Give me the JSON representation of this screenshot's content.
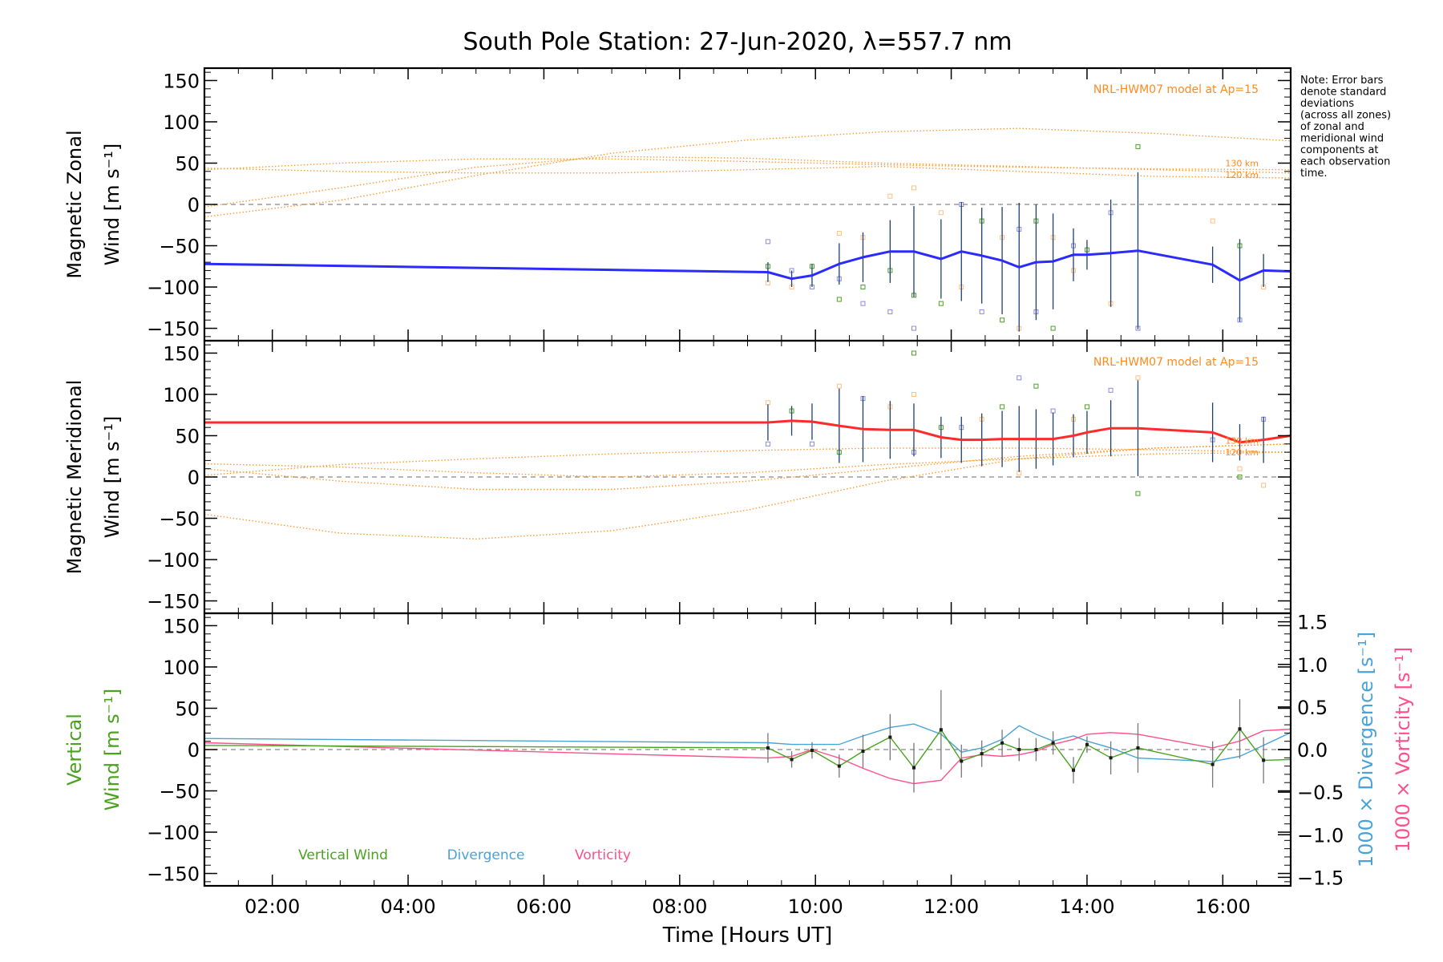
{
  "title": "South Pole Station: 27-Jun-2020, λ=557.7 nm",
  "note": [
    "Note: Error bars",
    "denote standard",
    "deviations",
    "(across all zones)",
    "of zonal and",
    "meridional wind",
    "components at",
    "each observation",
    "time."
  ],
  "colors": {
    "zonal": "#2b2bff",
    "meridional": "#ff2b2b",
    "vertical": "#4aa21f",
    "divergence": "#4aa3d6",
    "vorticity": "#ff4f8c",
    "model": "#ff9a2e",
    "model_text": "#ff8a1e",
    "errorbar": "#1f3f6f",
    "zero_line": "#888888",
    "scatter_blue": "#8a8ae8",
    "scatter_orange": "#ffc080",
    "scatter_green": "#4aa21f"
  },
  "chart_data": [
    {
      "id": "zonal",
      "type": "line",
      "ylabel": [
        "Magnetic Zonal",
        "Wind [m s⁻¹]"
      ],
      "xlim": [
        1.0,
        17.0
      ],
      "ylim": [
        -165,
        165
      ],
      "yticks": [
        150,
        100,
        50,
        0,
        -50,
        -100,
        -150
      ],
      "ytick_labels": [
        "150",
        "100",
        "50",
        "0",
        "−50",
        "−100",
        "−150"
      ],
      "model_label": "NRL-HWM07 model at Ap=15",
      "model_alt_labels": [
        "130 km",
        "120 km"
      ],
      "series": [
        {
          "name": "Zonal wind",
          "x": [
            1.0,
            9.3,
            9.65,
            9.95,
            10.35,
            10.7,
            11.1,
            11.45,
            11.85,
            12.15,
            12.45,
            12.75,
            13.0,
            13.25,
            13.5,
            13.8,
            14.0,
            14.35,
            14.75,
            15.85,
            16.25,
            16.6,
            17.0
          ],
          "y": [
            -72,
            -82,
            -90,
            -86,
            -72,
            -64,
            -57,
            -57,
            -66,
            -57,
            -62,
            -68,
            -76,
            -70,
            -69,
            -61,
            -61,
            -59,
            -56,
            -73,
            -92,
            -80,
            -81
          ],
          "err": [
            null,
            12,
            10,
            14,
            25,
            30,
            38,
            55,
            48,
            60,
            58,
            65,
            78,
            70,
            58,
            32,
            18,
            65,
            95,
            22,
            50,
            20,
            null
          ]
        }
      ],
      "model_series": [
        {
          "name": "model 1",
          "x": [
            1,
            3,
            5,
            7,
            9,
            11,
            13,
            15,
            17
          ],
          "y": [
            -15,
            5,
            35,
            62,
            78,
            88,
            92,
            86,
            77
          ]
        },
        {
          "name": "model 2",
          "x": [
            1,
            3,
            5,
            7,
            9,
            11,
            13,
            15,
            17
          ],
          "y": [
            -3,
            20,
            45,
            58,
            56,
            50,
            46,
            42,
            38
          ]
        },
        {
          "name": "model 3 (130 km)",
          "x": [
            1,
            3,
            5,
            7,
            9,
            11,
            13,
            15,
            17
          ],
          "y": [
            42,
            50,
            55,
            55,
            52,
            48,
            45,
            43,
            42
          ]
        },
        {
          "name": "model 4 (120 km)",
          "x": [
            1,
            3,
            5,
            7,
            9,
            11,
            13,
            15,
            17
          ],
          "y": [
            44,
            40,
            38,
            38,
            42,
            46,
            40,
            34,
            32
          ]
        }
      ],
      "scatter": {
        "x": [
          9.3,
          9.3,
          9.3,
          9.65,
          9.65,
          9.95,
          9.95,
          10.35,
          10.35,
          10.35,
          10.7,
          10.7,
          10.7,
          11.1,
          11.1,
          11.1,
          11.45,
          11.45,
          11.45,
          11.85,
          11.85,
          12.15,
          12.15,
          12.45,
          12.45,
          12.75,
          12.75,
          13.0,
          13.0,
          13.25,
          13.25,
          13.5,
          13.5,
          13.8,
          13.8,
          14.0,
          14.35,
          14.35,
          14.75,
          14.75,
          15.85,
          16.25,
          16.25,
          16.6
        ],
        "y": [
          -45,
          -95,
          -75,
          -80,
          -100,
          -75,
          -100,
          -35,
          -115,
          -90,
          -40,
          -100,
          -120,
          10,
          -80,
          -130,
          20,
          -110,
          -150,
          -10,
          -120,
          0,
          -100,
          -20,
          -130,
          -40,
          -140,
          -30,
          -150,
          -20,
          -130,
          -40,
          -150,
          -50,
          -80,
          -55,
          -10,
          -120,
          70,
          -150,
          -20,
          -50,
          -140,
          -100
        ]
      }
    },
    {
      "id": "meridional",
      "type": "line",
      "ylabel": [
        "Magnetic Meridional",
        "Wind [m s⁻¹]"
      ],
      "xlim": [
        1.0,
        17.0
      ],
      "ylim": [
        -165,
        165
      ],
      "yticks": [
        150,
        100,
        50,
        0,
        -50,
        -100,
        -150
      ],
      "ytick_labels": [
        "150",
        "100",
        "50",
        "0",
        "−50",
        "−100",
        "−150"
      ],
      "model_label": "NRL-HWM07 model at Ap=15",
      "model_alt_labels": [
        "130 km",
        "120 km"
      ],
      "series": [
        {
          "name": "Meridional wind",
          "x": [
            1.0,
            9.3,
            9.65,
            9.95,
            10.35,
            10.7,
            11.1,
            11.45,
            11.85,
            12.15,
            12.45,
            12.75,
            13.0,
            13.25,
            13.5,
            13.8,
            14.0,
            14.35,
            14.75,
            15.85,
            16.25,
            16.6,
            17.0
          ],
          "y": [
            66,
            66,
            68,
            67,
            62,
            58,
            57,
            57,
            48,
            45,
            45,
            46,
            46,
            46,
            46,
            50,
            54,
            59,
            59,
            54,
            42,
            45,
            50
          ],
          "err": [
            null,
            22,
            18,
            22,
            45,
            40,
            35,
            32,
            25,
            28,
            32,
            34,
            40,
            36,
            32,
            26,
            26,
            34,
            58,
            36,
            22,
            28,
            null
          ]
        }
      ],
      "model_series": [
        {
          "name": "model 1",
          "x": [
            1,
            3,
            5,
            7,
            9,
            11,
            13,
            15,
            17
          ],
          "y": [
            -45,
            -68,
            -75,
            -65,
            -40,
            -5,
            22,
            35,
            40
          ]
        },
        {
          "name": "model 2",
          "x": [
            1,
            3,
            5,
            7,
            9,
            11,
            13,
            15,
            17
          ],
          "y": [
            10,
            -5,
            -15,
            -15,
            -5,
            10,
            25,
            35,
            40
          ]
        },
        {
          "name": "model 3 (130 km)",
          "x": [
            1,
            3,
            5,
            7,
            9,
            11,
            13,
            15,
            17
          ],
          "y": [
            2,
            15,
            22,
            28,
            32,
            35,
            35,
            33,
            30
          ]
        },
        {
          "name": "model 4 (120 km)",
          "x": [
            1,
            3,
            5,
            7,
            9,
            11,
            13,
            15,
            17
          ],
          "y": [
            16,
            12,
            5,
            0,
            5,
            15,
            22,
            28,
            30
          ]
        }
      ],
      "scatter": {
        "x": [
          9.3,
          9.3,
          9.65,
          9.95,
          10.35,
          10.35,
          10.7,
          11.1,
          11.45,
          11.45,
          11.45,
          11.85,
          12.15,
          12.45,
          12.75,
          13.0,
          13.0,
          13.25,
          13.5,
          13.8,
          14.0,
          14.35,
          14.75,
          14.75,
          15.85,
          16.25,
          16.25,
          16.6,
          16.6
        ],
        "y": [
          40,
          90,
          80,
          40,
          110,
          30,
          95,
          85,
          150,
          30,
          100,
          60,
          60,
          70,
          85,
          120,
          5,
          110,
          80,
          70,
          85,
          105,
          120,
          -20,
          45,
          10,
          0,
          70,
          -10
        ]
      }
    },
    {
      "id": "vertical",
      "type": "line",
      "ylabel": [
        "Vertical",
        "Wind [m s⁻¹]"
      ],
      "xlabel": "Time [Hours UT]",
      "xlim": [
        1.0,
        17.0
      ],
      "ylim": [
        -165,
        165
      ],
      "yticks": [
        150,
        100,
        50,
        0,
        -50,
        -100,
        -150
      ],
      "ytick_labels": [
        "150",
        "100",
        "50",
        "0",
        "−50",
        "−100",
        "−150"
      ],
      "y2label": [
        "1000 × Divergence [s⁻¹]",
        "1000 × Vorticity [s⁻¹]"
      ],
      "y2lim": [
        -1.6,
        1.6
      ],
      "y2ticks": [
        1.5,
        1.0,
        0.5,
        0.0,
        -0.5,
        -1.0,
        -1.5
      ],
      "y2tick_labels": [
        "1.5",
        "1.0",
        "0.5",
        "0.0",
        "−0.5",
        "−1.0",
        "−1.5"
      ],
      "xticks": [
        2,
        4,
        6,
        8,
        10,
        12,
        14,
        16
      ],
      "xtick_labels": [
        "02:00",
        "04:00",
        "06:00",
        "08:00",
        "10:00",
        "12:00",
        "14:00",
        "16:00"
      ],
      "legend": [
        "Vertical Wind",
        "Divergence",
        "Vorticity"
      ],
      "series": [
        {
          "name": "Vertical Wind",
          "axis": "left",
          "x": [
            1.0,
            9.3,
            9.65,
            9.95,
            10.35,
            10.7,
            11.1,
            11.45,
            11.85,
            12.15,
            12.45,
            12.75,
            13.0,
            13.25,
            13.5,
            13.8,
            14.0,
            14.35,
            14.75,
            15.85,
            16.25,
            16.6,
            17.0
          ],
          "y": [
            5,
            2,
            -12,
            -1,
            -20,
            -2,
            15,
            -22,
            24,
            -14,
            -5,
            8,
            0,
            0,
            8,
            -25,
            6,
            -10,
            2,
            -18,
            25,
            -13,
            -12
          ],
          "err": [
            null,
            18,
            10,
            10,
            14,
            20,
            28,
            30,
            48,
            20,
            16,
            16,
            14,
            14,
            14,
            16,
            10,
            20,
            30,
            28,
            36,
            28,
            null
          ]
        },
        {
          "name": "Divergence",
          "axis": "right",
          "x": [
            1.0,
            9.3,
            9.65,
            9.95,
            10.35,
            10.7,
            11.1,
            11.45,
            11.85,
            12.15,
            12.45,
            12.75,
            13.0,
            13.25,
            13.5,
            13.8,
            14.0,
            14.35,
            14.75,
            15.85,
            16.25,
            16.6,
            17.0
          ],
          "y": [
            0.13,
            0.08,
            0.06,
            0.06,
            0.06,
            0.16,
            0.26,
            0.3,
            0.18,
            -0.03,
            0.02,
            0.12,
            0.28,
            0.18,
            0.1,
            0.16,
            0.1,
            0.02,
            -0.1,
            -0.14,
            -0.08,
            0.05,
            0.2
          ]
        },
        {
          "name": "Vorticity",
          "axis": "right",
          "x": [
            1.0,
            9.3,
            9.65,
            9.95,
            10.35,
            10.7,
            11.1,
            11.45,
            11.85,
            12.15,
            12.45,
            12.75,
            13.0,
            13.25,
            13.5,
            13.8,
            14.0,
            14.35,
            14.75,
            15.85,
            16.25,
            16.6,
            17.0
          ],
          "y": [
            0.08,
            -0.1,
            -0.08,
            0.0,
            -0.1,
            -0.22,
            -0.34,
            -0.4,
            -0.36,
            -0.1,
            -0.06,
            -0.08,
            -0.06,
            -0.02,
            0.06,
            0.12,
            0.18,
            0.2,
            0.18,
            0.02,
            0.1,
            0.22,
            0.24
          ]
        }
      ]
    }
  ]
}
